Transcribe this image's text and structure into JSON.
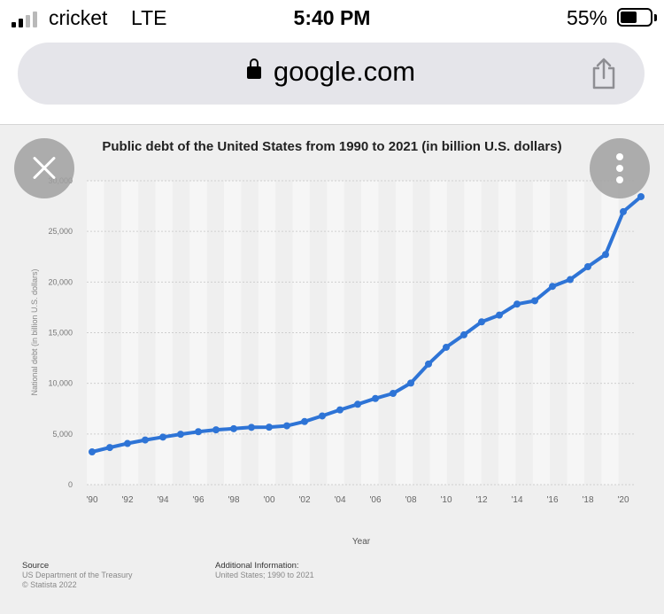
{
  "status_bar": {
    "carrier": "cricket",
    "network": "LTE",
    "time": "5:40 PM",
    "battery_percent": "55%",
    "battery_level": 0.55,
    "signal_bars": 2
  },
  "browser": {
    "url": "google.com"
  },
  "icons": {
    "lock": "lock-icon",
    "share": "share-icon",
    "close": "close-icon",
    "more": "more-vertical-icon"
  },
  "colors": {
    "series_line": "#2e74d6",
    "plot_band": "#f6f6f6",
    "grid": "#cfcfcf",
    "page_bg": "#efefef"
  },
  "chart_data": {
    "type": "line",
    "title": "Public debt of the United States from 1990 to 2021 (in billion U.S. dollars)",
    "xlabel": "Year",
    "ylabel": "National debt (in billion U.S. dollars)",
    "ylim": [
      0,
      30000
    ],
    "xlim": [
      1990,
      2021
    ],
    "yticks": [
      "0",
      "5,000",
      "10,000",
      "15,000",
      "20,000",
      "25,000",
      "30,000"
    ],
    "xticks": [
      "'90",
      "'92",
      "'94",
      "'96",
      "'98",
      "'00",
      "'02",
      "'04",
      "'06",
      "'08",
      "'10",
      "'12",
      "'14",
      "'16",
      "'18",
      "'20"
    ],
    "grid": true,
    "x": [
      1990,
      1991,
      1992,
      1993,
      1994,
      1995,
      1996,
      1997,
      1998,
      1999,
      2000,
      2001,
      2002,
      2003,
      2004,
      2005,
      2006,
      2007,
      2008,
      2009,
      2010,
      2011,
      2012,
      2013,
      2014,
      2015,
      2016,
      2017,
      2018,
      2019,
      2020,
      2021
    ],
    "series": [
      {
        "values": [
          3233,
          3665,
          4065,
          4411,
          4693,
          4974,
          5225,
          5413,
          5526,
          5656,
          5674,
          5807,
          6228,
          6783,
          7379,
          7933,
          8507,
          9008,
          10025,
          11910,
          13562,
          14790,
          16066,
          16738,
          17824,
          18151,
          19573,
          20245,
          21516,
          22719,
          26945,
          28429
        ]
      }
    ]
  },
  "footer": {
    "source_heading": "Source",
    "source_line1": "US Department of the Treasury",
    "source_line2": "© Statista 2022",
    "info_heading": "Additional Information:",
    "info_line1": "United States; 1990 to 2021"
  }
}
